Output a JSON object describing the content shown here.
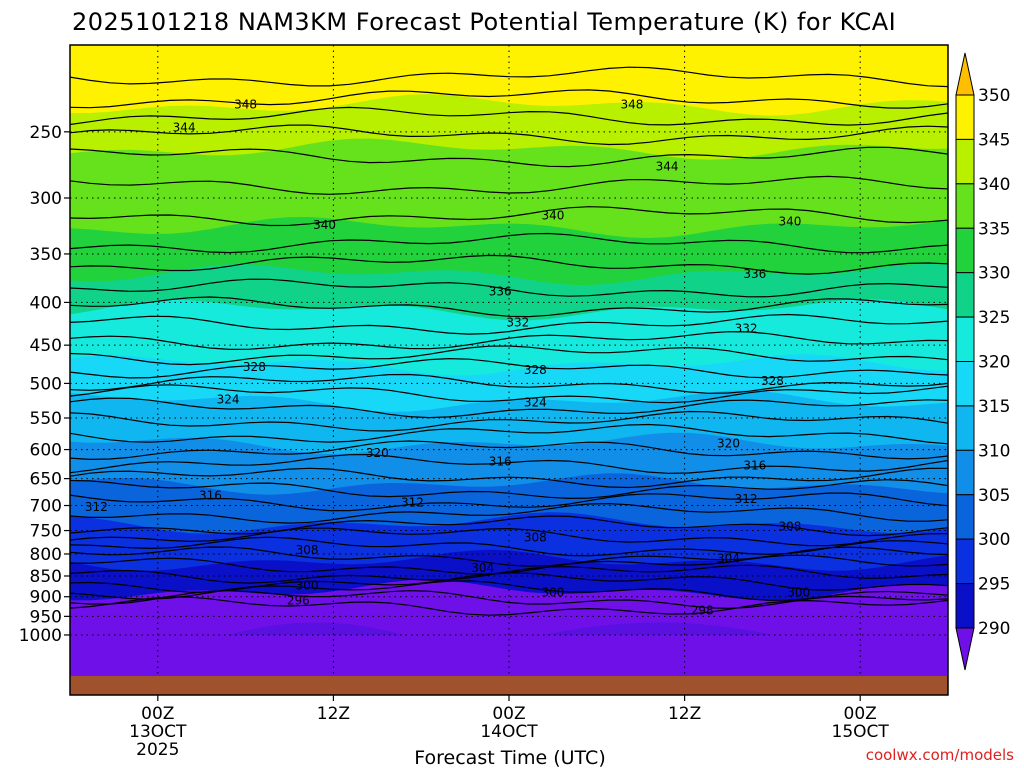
{
  "title": "2025101218 NAM3KM Forecast Potential Temperature (K) for KCAI",
  "credit": "coolwx.com/models",
  "chart_data": {
    "type": "heatmap",
    "xlabel": "Forecast Time (UTC)",
    "ylabel": "",
    "y_scale": "log",
    "y_ticks": [
      "250",
      "300",
      "350",
      "400",
      "450",
      "500",
      "550",
      "600",
      "650",
      "700",
      "750",
      "800",
      "850",
      "900",
      "950",
      "1000"
    ],
    "x_ticks": [
      {
        "lines": [
          "00Z",
          "13OCT",
          "2025"
        ]
      },
      {
        "lines": [
          "12Z"
        ]
      },
      {
        "lines": [
          "00Z",
          "14OCT"
        ]
      },
      {
        "lines": [
          "12Z"
        ]
      },
      {
        "lines": [
          "00Z",
          "15OCT"
        ]
      }
    ],
    "colorbar": {
      "labels": [
        "350",
        "345",
        "340",
        "335",
        "330",
        "325",
        "320",
        "315",
        "310",
        "305",
        "300",
        "295",
        "290"
      ],
      "colors": [
        "#ffbf00",
        "#fff200",
        "#b8f000",
        "#66e21c",
        "#22d23c",
        "#10d288",
        "#16eadc",
        "#18d8f8",
        "#10b6f0",
        "#108ee8",
        "#0a64dc",
        "#0a30e0",
        "#0a10c8",
        "#7010e8"
      ]
    },
    "isentropes": [
      {
        "label": "296",
        "level": "~895 hPa"
      },
      {
        "label": "298",
        "level": "~910 hPa"
      },
      {
        "label": "300",
        "level": "~862 hPa"
      },
      {
        "label": "304",
        "level": "~800 hPa"
      },
      {
        "label": "308",
        "level": "~758 hPa"
      },
      {
        "label": "312",
        "level": "~692 hPa"
      },
      {
        "label": "316",
        "level": "~646 hPa"
      },
      {
        "label": "320",
        "level": "~590 hPa"
      },
      {
        "label": "324",
        "level": "~523 hPa"
      },
      {
        "label": "328",
        "level": "~478 hPa"
      },
      {
        "label": "332",
        "level": "~423 hPa"
      },
      {
        "label": "336",
        "level": "~388 hPa"
      },
      {
        "label": "340",
        "level": "~323 hPa"
      },
      {
        "label": "344",
        "level": "~256 hPa"
      },
      {
        "label": "348",
        "level": "~232 hPa"
      }
    ],
    "contour_labels": [
      {
        "text": "348",
        "t": 0.2,
        "p": 232
      },
      {
        "text": "348",
        "t": 0.64,
        "p": 232
      },
      {
        "text": "344",
        "t": 0.13,
        "p": 247
      },
      {
        "text": "344",
        "t": 0.68,
        "p": 275
      },
      {
        "text": "340",
        "t": 0.29,
        "p": 323
      },
      {
        "text": "340",
        "t": 0.55,
        "p": 315
      },
      {
        "text": "340",
        "t": 0.82,
        "p": 320
      },
      {
        "text": "336",
        "t": 0.49,
        "p": 388
      },
      {
        "text": "336",
        "t": 0.78,
        "p": 370
      },
      {
        "text": "332",
        "t": 0.51,
        "p": 423
      },
      {
        "text": "332",
        "t": 0.77,
        "p": 430
      },
      {
        "text": "328",
        "t": 0.21,
        "p": 478
      },
      {
        "text": "328",
        "t": 0.53,
        "p": 482
      },
      {
        "text": "328",
        "t": 0.8,
        "p": 497
      },
      {
        "text": "324",
        "t": 0.18,
        "p": 523
      },
      {
        "text": "324",
        "t": 0.53,
        "p": 527
      },
      {
        "text": "320",
        "t": 0.35,
        "p": 606
      },
      {
        "text": "320",
        "t": 0.75,
        "p": 590
      },
      {
        "text": "316",
        "t": 0.16,
        "p": 681
      },
      {
        "text": "316",
        "t": 0.49,
        "p": 620
      },
      {
        "text": "316",
        "t": 0.78,
        "p": 627
      },
      {
        "text": "312",
        "t": 0.03,
        "p": 703
      },
      {
        "text": "312",
        "t": 0.39,
        "p": 694
      },
      {
        "text": "312",
        "t": 0.77,
        "p": 688
      },
      {
        "text": "308",
        "t": 0.27,
        "p": 791
      },
      {
        "text": "308",
        "t": 0.53,
        "p": 765
      },
      {
        "text": "308",
        "t": 0.82,
        "p": 742
      },
      {
        "text": "304",
        "t": 0.47,
        "p": 831
      },
      {
        "text": "304",
        "t": 0.75,
        "p": 810
      },
      {
        "text": "300",
        "t": 0.27,
        "p": 873
      },
      {
        "text": "300",
        "t": 0.55,
        "p": 890
      },
      {
        "text": "300",
        "t": 0.83,
        "p": 890
      },
      {
        "text": "296",
        "t": 0.26,
        "p": 910
      },
      {
        "text": "298",
        "t": 0.72,
        "p": 935
      }
    ],
    "ground_color": "#a0522d"
  }
}
